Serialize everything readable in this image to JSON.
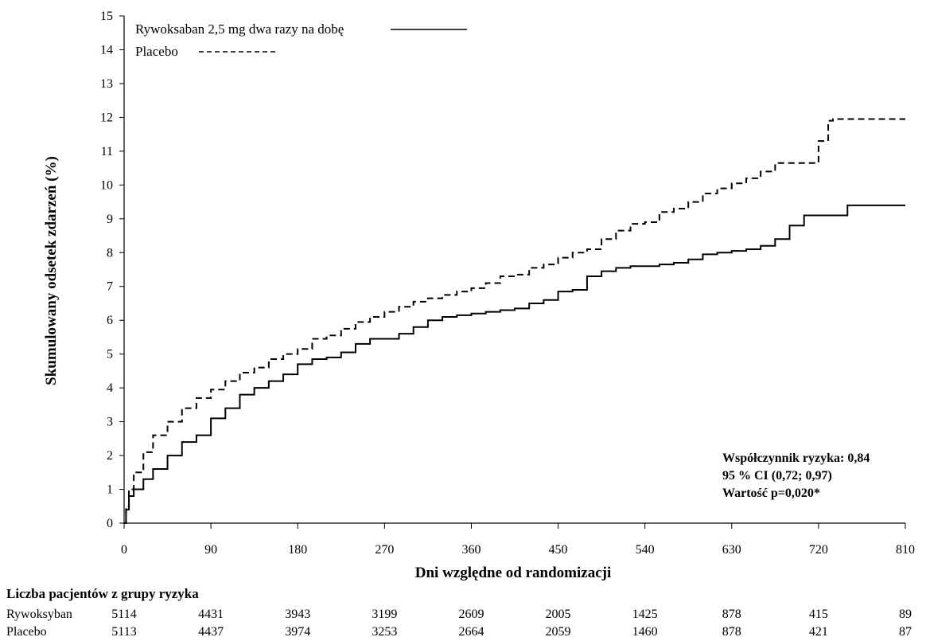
{
  "chart_data": {
    "type": "line",
    "xlabel": "Dni względne od randomizacji",
    "ylabel": "Skumulowany odsetek zdarzeń (%)",
    "xlim": [
      0,
      810
    ],
    "ylim": [
      0,
      15
    ],
    "x_ticks": [
      "0",
      "90",
      "180",
      "270",
      "360",
      "450",
      "540",
      "630",
      "720",
      "810"
    ],
    "y_ticks": [
      "0",
      "1",
      "2",
      "3",
      "4",
      "5",
      "6",
      "7",
      "8",
      "9",
      "10",
      "11",
      "12",
      "13",
      "14",
      "15"
    ],
    "legend_position": "top-left",
    "series": [
      {
        "name": "Rywoksaban 2,5 mg dwa razy na dobę",
        "style": "solid",
        "color": "#000000",
        "x": [
          0,
          2,
          5,
          10,
          20,
          30,
          45,
          60,
          75,
          90,
          105,
          120,
          135,
          150,
          165,
          180,
          195,
          210,
          225,
          240,
          255,
          270,
          285,
          300,
          315,
          330,
          345,
          360,
          375,
          390,
          405,
          420,
          435,
          450,
          465,
          480,
          495,
          510,
          525,
          540,
          555,
          570,
          585,
          600,
          615,
          630,
          645,
          660,
          675,
          690,
          705,
          720,
          735,
          750,
          765,
          780,
          795,
          810
        ],
        "y": [
          0,
          0.4,
          0.8,
          1.0,
          1.3,
          1.6,
          2.0,
          2.4,
          2.6,
          3.1,
          3.4,
          3.8,
          4.0,
          4.2,
          4.4,
          4.7,
          4.85,
          4.9,
          5.05,
          5.3,
          5.45,
          5.45,
          5.6,
          5.8,
          6.0,
          6.1,
          6.15,
          6.2,
          6.25,
          6.3,
          6.35,
          6.5,
          6.6,
          6.85,
          6.9,
          7.3,
          7.45,
          7.55,
          7.6,
          7.6,
          7.65,
          7.7,
          7.8,
          7.95,
          8.0,
          8.05,
          8.1,
          8.2,
          8.4,
          8.8,
          9.1,
          9.1,
          9.1,
          9.4,
          9.4,
          9.4,
          9.4,
          9.4
        ]
      },
      {
        "name": "Placebo",
        "style": "dashed",
        "color": "#000000",
        "x": [
          0,
          2,
          5,
          10,
          20,
          30,
          45,
          60,
          75,
          90,
          105,
          120,
          135,
          150,
          165,
          180,
          195,
          210,
          225,
          240,
          255,
          270,
          285,
          300,
          315,
          330,
          345,
          360,
          375,
          390,
          405,
          420,
          435,
          450,
          465,
          480,
          495,
          510,
          525,
          540,
          555,
          570,
          585,
          600,
          615,
          630,
          645,
          660,
          675,
          690,
          705,
          720,
          730,
          735,
          750,
          765,
          780,
          795,
          810
        ],
        "y": [
          0,
          0.5,
          1.0,
          1.5,
          2.1,
          2.6,
          3.0,
          3.4,
          3.7,
          3.95,
          4.2,
          4.45,
          4.6,
          4.85,
          5.0,
          5.15,
          5.45,
          5.55,
          5.75,
          5.95,
          6.1,
          6.25,
          6.4,
          6.55,
          6.65,
          6.75,
          6.85,
          6.95,
          7.1,
          7.3,
          7.35,
          7.55,
          7.65,
          7.85,
          8.0,
          8.1,
          8.4,
          8.65,
          8.85,
          8.9,
          9.2,
          9.3,
          9.5,
          9.75,
          9.9,
          10.05,
          10.2,
          10.4,
          10.65,
          10.65,
          10.65,
          11.3,
          11.9,
          11.95,
          11.95,
          11.95,
          11.95,
          11.95,
          11.95
        ]
      }
    ],
    "annotations": [
      "Współczynnik ryzyka: 0,84",
      "95 % CI (0,72; 0,97)",
      "Wartość p=0,020*"
    ]
  },
  "risk_table": {
    "title": "Liczba pacjentów z grupy ryzyka",
    "rows": [
      {
        "label": "Rywoksyban",
        "values": [
          "5114",
          "4431",
          "3943",
          "3199",
          "2609",
          "2005",
          "1425",
          "878",
          "415",
          "89"
        ]
      },
      {
        "label": "Placebo",
        "values": [
          "5113",
          "4437",
          "3974",
          "3253",
          "2664",
          "2059",
          "1460",
          "878",
          "421",
          "87"
        ]
      }
    ]
  }
}
